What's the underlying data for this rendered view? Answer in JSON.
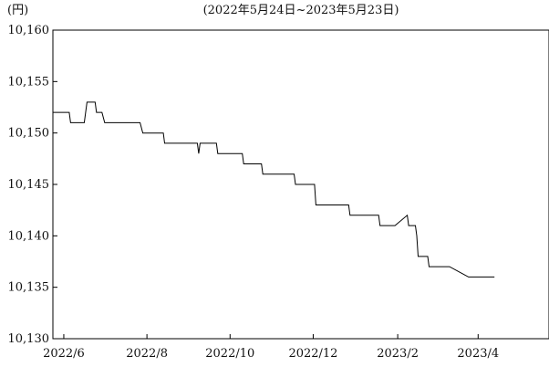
{
  "chart_data": {
    "type": "line",
    "title": "",
    "subtitle": "(2022年5月24日~2023年5月23日)",
    "ylabel": "(円)",
    "xlabel": "",
    "ylim": [
      10130,
      10160
    ],
    "yticks": [
      10130,
      10135,
      10140,
      10145,
      10150,
      10155,
      10160
    ],
    "ytick_labels": [
      "10,130",
      "10,135",
      "10,140",
      "10,145",
      "10,150",
      "10,155",
      "10,160"
    ],
    "xlim": [
      "2022-05-24",
      "2023-05-23"
    ],
    "xticks": [
      "2022-06-01",
      "2022-08-01",
      "2022-10-01",
      "2022-12-01",
      "2023-02-01",
      "2023-04-01"
    ],
    "xtick_labels": [
      "2022/6",
      "2022/8",
      "2022/10",
      "2022/12",
      "2023/2",
      "2023/4"
    ],
    "grid": false,
    "legend": "none",
    "line_color": "#000000",
    "series": [
      {
        "x": [
          "2022-05-24",
          "2022-06-05",
          "2022-06-06",
          "2022-06-16",
          "2022-06-18",
          "2022-06-24",
          "2022-06-25",
          "2022-06-29",
          "2022-07-01",
          "2022-07-02",
          "2022-07-27",
          "2022-07-29",
          "2022-08-13",
          "2022-08-14",
          "2022-09-07",
          "2022-09-08",
          "2022-09-09",
          "2022-09-10",
          "2022-09-21",
          "2022-09-22",
          "2022-10-10",
          "2022-10-11",
          "2022-10-24",
          "2022-10-25",
          "2022-11-17",
          "2022-11-18",
          "2022-12-02",
          "2022-12-03",
          "2022-12-27",
          "2022-12-28",
          "2023-01-18",
          "2023-01-19",
          "2023-01-29",
          "2023-01-30",
          "2023-02-08",
          "2023-02-09",
          "2023-02-14",
          "2023-02-15",
          "2023-02-16",
          "2023-02-21",
          "2023-02-23",
          "2023-02-24",
          "2023-03-09",
          "2023-03-11",
          "2023-03-25",
          "2023-03-26",
          "2023-04-01",
          "2023-04-02",
          "2023-04-13"
        ],
        "y": [
          10152,
          10152,
          10151,
          10151,
          10153,
          10153,
          10152,
          10152,
          10151,
          10151,
          10151,
          10150,
          10150,
          10149,
          10149,
          10148,
          10149,
          10149,
          10149,
          10148,
          10148,
          10147,
          10147,
          10146,
          10146,
          10145,
          10145,
          10143,
          10143,
          10142,
          10142,
          10141,
          10141,
          10141,
          10142,
          10141,
          10141,
          10140,
          10138,
          10138,
          10138,
          10137,
          10137,
          10137,
          10136,
          10136,
          10136,
          10136,
          10136
        ]
      }
    ]
  }
}
